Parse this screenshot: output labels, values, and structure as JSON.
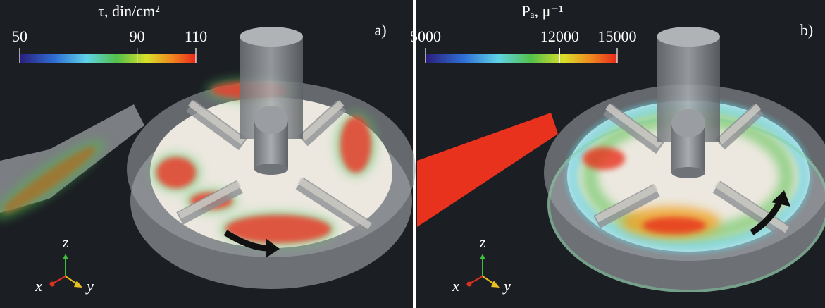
{
  "panels": [
    {
      "label": "a)",
      "colorbar": {
        "title": "τ, din/cm²",
        "ticks": [
          50,
          90,
          110
        ]
      },
      "axes": {
        "x": "x",
        "y": "y",
        "z": "z"
      }
    },
    {
      "label": "b)",
      "colorbar": {
        "title": "Pₐ, μ⁻¹",
        "ticks": [
          5000,
          12000,
          15000
        ]
      },
      "axes": {
        "x": "x",
        "y": "y",
        "z": "z"
      }
    }
  ]
}
